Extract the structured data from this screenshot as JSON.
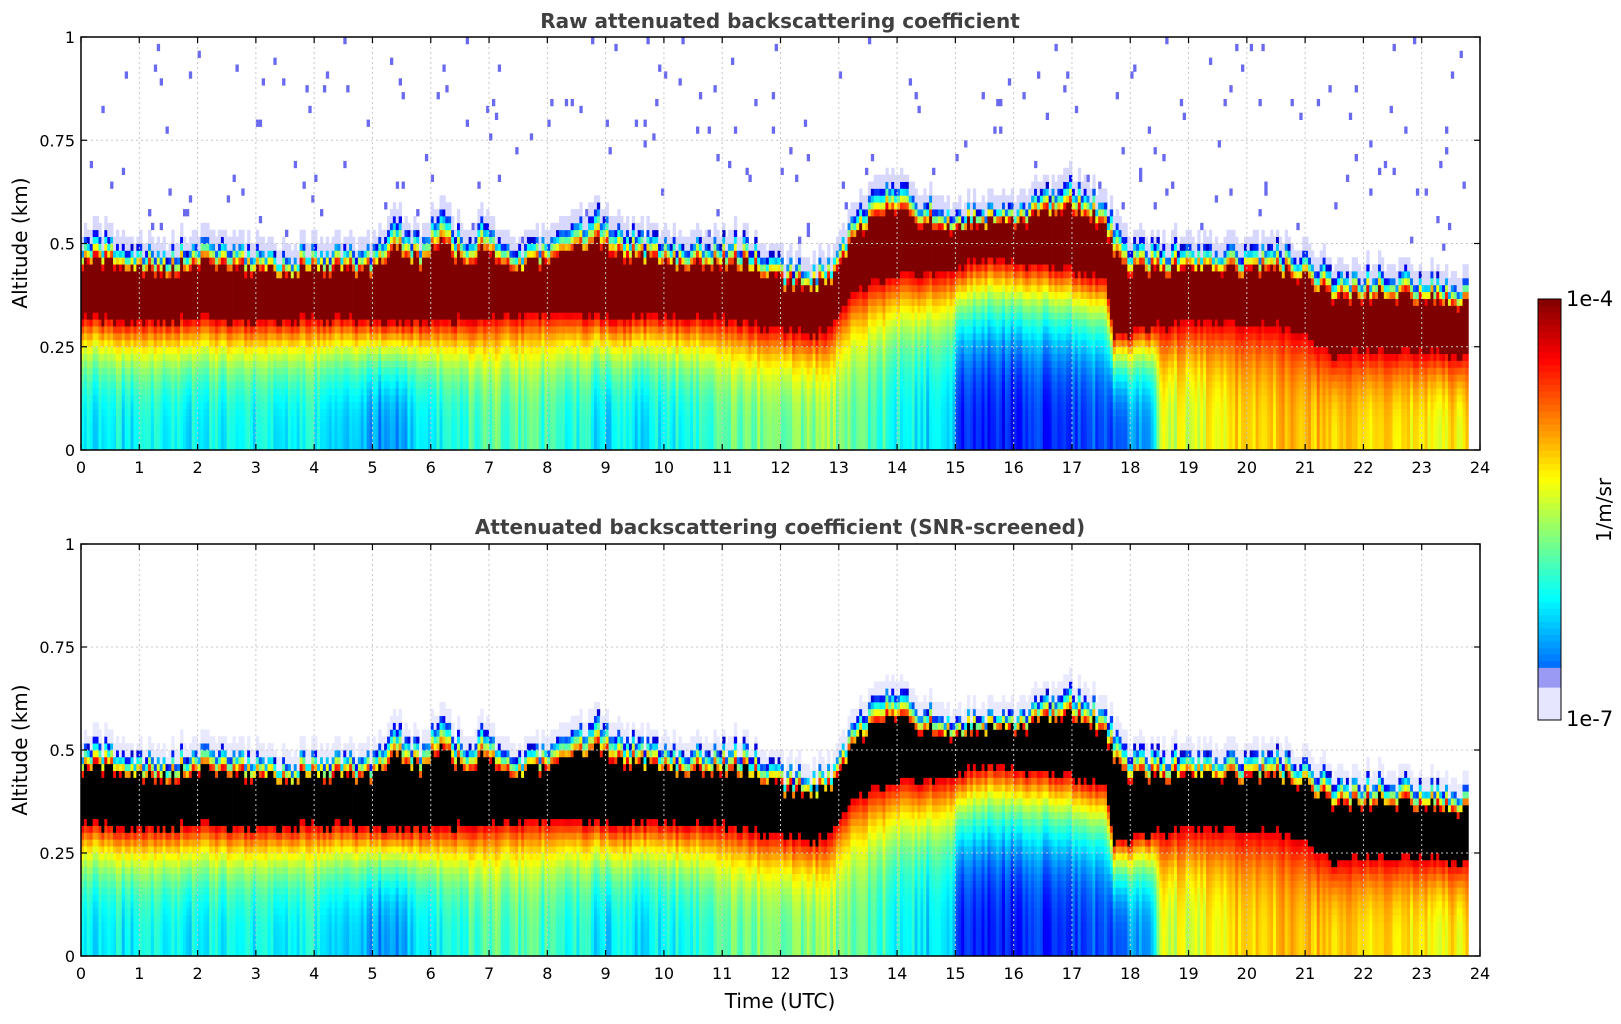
{
  "chart_data": [
    {
      "type": "heatmap",
      "title": "Raw attenuated backscattering coefficient",
      "xlabel": "",
      "ylabel": "Altitude (km)",
      "xlim": [
        0,
        24
      ],
      "ylim": [
        0,
        1
      ],
      "xticks": [
        "0",
        "1",
        "2",
        "3",
        "4",
        "5",
        "6",
        "7",
        "8",
        "9",
        "10",
        "11",
        "12",
        "13",
        "14",
        "15",
        "16",
        "17",
        "18",
        "19",
        "20",
        "21",
        "22",
        "23",
        "24"
      ],
      "yticks": [
        "0",
        "0.25",
        "0.5",
        "0.75",
        "1"
      ],
      "grid": true,
      "screened": false,
      "data_end_hour": 23.8,
      "layer_top_km": [
        [
          0,
          0.5
        ],
        [
          0.5,
          0.51
        ],
        [
          1,
          0.48
        ],
        [
          1.5,
          0.48
        ],
        [
          2,
          0.5
        ],
        [
          2.5,
          0.5
        ],
        [
          3,
          0.48
        ],
        [
          3.5,
          0.47
        ],
        [
          4,
          0.49
        ],
        [
          4.5,
          0.48
        ],
        [
          5,
          0.48
        ],
        [
          5.4,
          0.56
        ],
        [
          5.8,
          0.5
        ],
        [
          6.2,
          0.58
        ],
        [
          6.6,
          0.5
        ],
        [
          6.9,
          0.56
        ],
        [
          7.3,
          0.48
        ],
        [
          7.8,
          0.5
        ],
        [
          8.3,
          0.53
        ],
        [
          8.9,
          0.57
        ],
        [
          9.5,
          0.52
        ],
        [
          10,
          0.5
        ],
        [
          10.5,
          0.5
        ],
        [
          11,
          0.51
        ],
        [
          11.5,
          0.5
        ],
        [
          12,
          0.45
        ],
        [
          12.5,
          0.44
        ],
        [
          12.9,
          0.45
        ],
        [
          13.3,
          0.58
        ],
        [
          13.8,
          0.64
        ],
        [
          14.2,
          0.62
        ],
        [
          14.6,
          0.6
        ],
        [
          15.0,
          0.58
        ],
        [
          15.4,
          0.58
        ],
        [
          16,
          0.58
        ],
        [
          16.5,
          0.62
        ],
        [
          17,
          0.65
        ],
        [
          17.3,
          0.63
        ],
        [
          17.6,
          0.58
        ],
        [
          18,
          0.5
        ],
        [
          18.5,
          0.49
        ],
        [
          19,
          0.49
        ],
        [
          19.5,
          0.48
        ],
        [
          20,
          0.48
        ],
        [
          20.5,
          0.49
        ],
        [
          21,
          0.47
        ],
        [
          21.5,
          0.43
        ],
        [
          22,
          0.42
        ],
        [
          22.5,
          0.43
        ],
        [
          23,
          0.42
        ],
        [
          23.8,
          0.4
        ]
      ],
      "layer_base_km": [
        [
          0,
          0.32
        ],
        [
          1,
          0.31
        ],
        [
          2,
          0.32
        ],
        [
          3,
          0.31
        ],
        [
          4,
          0.32
        ],
        [
          5,
          0.31
        ],
        [
          6,
          0.31
        ],
        [
          7,
          0.32
        ],
        [
          8,
          0.33
        ],
        [
          9,
          0.32
        ],
        [
          10,
          0.32
        ],
        [
          11,
          0.32
        ],
        [
          12,
          0.29
        ],
        [
          12.8,
          0.28
        ],
        [
          13.3,
          0.39
        ],
        [
          14,
          0.42
        ],
        [
          15,
          0.44
        ],
        [
          15.5,
          0.46
        ],
        [
          16,
          0.45
        ],
        [
          17,
          0.44
        ],
        [
          17.6,
          0.41
        ],
        [
          17.7,
          0.28
        ],
        [
          18.5,
          0.3
        ],
        [
          19,
          0.31
        ],
        [
          19.5,
          0.31
        ],
        [
          20,
          0.3
        ],
        [
          20.5,
          0.3
        ],
        [
          21,
          0.28
        ],
        [
          21.5,
          0.23
        ],
        [
          22,
          0.24
        ],
        [
          22.5,
          0.24
        ],
        [
          23,
          0.24
        ],
        [
          23.8,
          0.23
        ]
      ],
      "surface_log10_backscatter": [
        [
          0,
          -5.9
        ],
        [
          2,
          -5.9
        ],
        [
          4,
          -5.85
        ],
        [
          5.2,
          -6.25
        ],
        [
          6,
          -5.9
        ],
        [
          7,
          -5.6
        ],
        [
          8,
          -5.7
        ],
        [
          9,
          -5.95
        ],
        [
          10,
          -5.9
        ],
        [
          11,
          -5.6
        ],
        [
          12,
          -5.5
        ],
        [
          13,
          -5.45
        ],
        [
          14,
          -5.8
        ],
        [
          14.95,
          -6.1
        ],
        [
          15.05,
          -6.55
        ],
        [
          16,
          -6.55
        ],
        [
          17,
          -6.45
        ],
        [
          17.7,
          -6.35
        ],
        [
          18.4,
          -6.1
        ],
        [
          18.5,
          -5.3
        ],
        [
          19.5,
          -5.1
        ],
        [
          20,
          -5.0
        ],
        [
          21,
          -4.9
        ],
        [
          22,
          -5.0
        ],
        [
          23,
          -5.1
        ],
        [
          23.8,
          -5.1
        ]
      ]
    },
    {
      "type": "heatmap",
      "title": "Attenuated backscattering coefficient (SNR-screened)",
      "xlabel": "Time (UTC)",
      "ylabel": "Altitude (km)",
      "xlim": [
        0,
        24
      ],
      "ylim": [
        0,
        1
      ],
      "xticks": [
        "0",
        "1",
        "2",
        "3",
        "4",
        "5",
        "6",
        "7",
        "8",
        "9",
        "10",
        "11",
        "12",
        "13",
        "14",
        "15",
        "16",
        "17",
        "18",
        "19",
        "20",
        "21",
        "22",
        "23",
        "24"
      ],
      "yticks": [
        "0",
        "0.25",
        "0.5",
        "0.75",
        "1"
      ],
      "grid": true,
      "screened": true,
      "data_end_hour": 23.8,
      "layer_top_km": [
        [
          0,
          0.5
        ],
        [
          0.5,
          0.51
        ],
        [
          1,
          0.48
        ],
        [
          1.5,
          0.48
        ],
        [
          2,
          0.5
        ],
        [
          2.5,
          0.5
        ],
        [
          3,
          0.48
        ],
        [
          3.5,
          0.47
        ],
        [
          4,
          0.49
        ],
        [
          4.5,
          0.48
        ],
        [
          5,
          0.48
        ],
        [
          5.4,
          0.56
        ],
        [
          5.8,
          0.5
        ],
        [
          6.2,
          0.58
        ],
        [
          6.6,
          0.5
        ],
        [
          6.9,
          0.56
        ],
        [
          7.3,
          0.48
        ],
        [
          7.8,
          0.5
        ],
        [
          8.3,
          0.53
        ],
        [
          8.9,
          0.57
        ],
        [
          9.5,
          0.52
        ],
        [
          10,
          0.5
        ],
        [
          10.5,
          0.5
        ],
        [
          11,
          0.51
        ],
        [
          11.5,
          0.5
        ],
        [
          12,
          0.45
        ],
        [
          12.5,
          0.44
        ],
        [
          12.9,
          0.45
        ],
        [
          13.3,
          0.58
        ],
        [
          13.8,
          0.64
        ],
        [
          14.2,
          0.62
        ],
        [
          14.6,
          0.6
        ],
        [
          15.0,
          0.58
        ],
        [
          15.4,
          0.58
        ],
        [
          16,
          0.58
        ],
        [
          16.5,
          0.62
        ],
        [
          17,
          0.65
        ],
        [
          17.3,
          0.63
        ],
        [
          17.6,
          0.58
        ],
        [
          18,
          0.5
        ],
        [
          18.5,
          0.49
        ],
        [
          19,
          0.49
        ],
        [
          19.5,
          0.48
        ],
        [
          20,
          0.48
        ],
        [
          20.5,
          0.49
        ],
        [
          21,
          0.47
        ],
        [
          21.5,
          0.43
        ],
        [
          22,
          0.42
        ],
        [
          22.5,
          0.43
        ],
        [
          23,
          0.42
        ],
        [
          23.8,
          0.4
        ]
      ],
      "layer_base_km": [
        [
          0,
          0.32
        ],
        [
          1,
          0.31
        ],
        [
          2,
          0.32
        ],
        [
          3,
          0.31
        ],
        [
          4,
          0.32
        ],
        [
          5,
          0.31
        ],
        [
          6,
          0.31
        ],
        [
          7,
          0.32
        ],
        [
          8,
          0.33
        ],
        [
          9,
          0.32
        ],
        [
          10,
          0.32
        ],
        [
          11,
          0.32
        ],
        [
          12,
          0.29
        ],
        [
          12.8,
          0.28
        ],
        [
          13.3,
          0.39
        ],
        [
          14,
          0.42
        ],
        [
          15,
          0.44
        ],
        [
          15.5,
          0.46
        ],
        [
          16,
          0.45
        ],
        [
          17,
          0.44
        ],
        [
          17.6,
          0.41
        ],
        [
          17.7,
          0.28
        ],
        [
          18.5,
          0.3
        ],
        [
          19,
          0.31
        ],
        [
          19.5,
          0.31
        ],
        [
          20,
          0.3
        ],
        [
          20.5,
          0.3
        ],
        [
          21,
          0.28
        ],
        [
          21.5,
          0.23
        ],
        [
          22,
          0.24
        ],
        [
          22.5,
          0.24
        ],
        [
          23,
          0.24
        ],
        [
          23.8,
          0.23
        ]
      ],
      "surface_log10_backscatter": [
        [
          0,
          -5.9
        ],
        [
          2,
          -5.9
        ],
        [
          4,
          -5.85
        ],
        [
          5.2,
          -6.25
        ],
        [
          6,
          -5.9
        ],
        [
          7,
          -5.6
        ],
        [
          8,
          -5.7
        ],
        [
          9,
          -5.95
        ],
        [
          10,
          -5.9
        ],
        [
          11,
          -5.6
        ],
        [
          12,
          -5.5
        ],
        [
          13,
          -5.45
        ],
        [
          14,
          -5.8
        ],
        [
          14.95,
          -6.1
        ],
        [
          15.05,
          -6.55
        ],
        [
          16,
          -6.55
        ],
        [
          17,
          -6.45
        ],
        [
          17.7,
          -6.35
        ],
        [
          18.4,
          -6.1
        ],
        [
          18.5,
          -5.3
        ],
        [
          19.5,
          -5.1
        ],
        [
          20,
          -5.0
        ],
        [
          21,
          -4.9
        ],
        [
          22,
          -5.0
        ],
        [
          23,
          -5.1
        ],
        [
          23.8,
          -5.1
        ]
      ]
    }
  ],
  "colorbar": {
    "label": "1/m/sr",
    "max_label": "1e-4",
    "min_label": "1e-7",
    "log10_range": [
      -7,
      -4
    ]
  },
  "colors": {
    "screened_saturation": "#000000",
    "raw_saturation": "#7f0000",
    "title_text": "#404040"
  }
}
